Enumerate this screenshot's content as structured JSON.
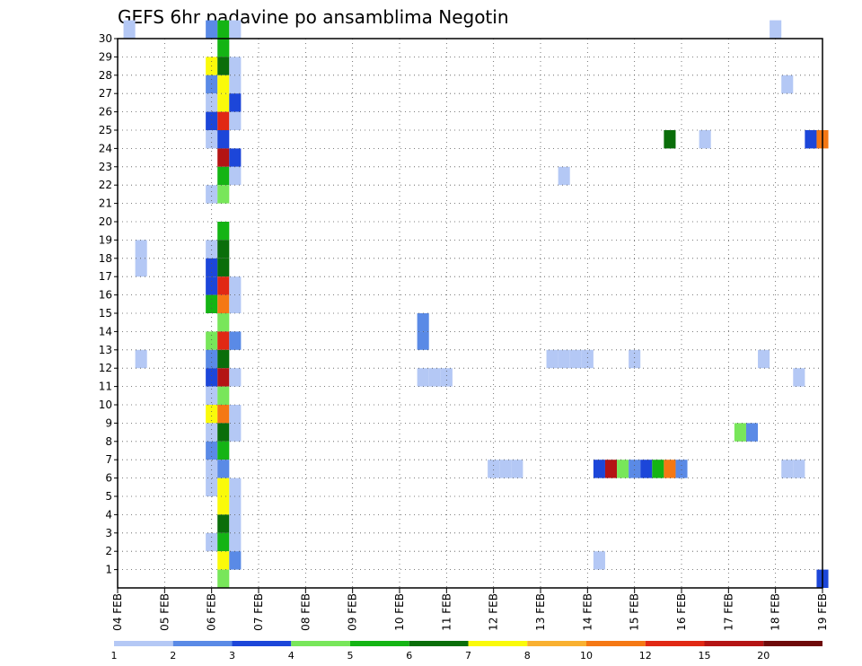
{
  "chart_data": {
    "type": "heatmap",
    "title": "GEFS 6hr padavine po ansamblima Negotin",
    "xlabel": "",
    "ylabel": "",
    "x_tick_labels": [
      "04 FEB",
      "05 FEB",
      "06 FEB",
      "07 FEB",
      "08 FEB",
      "09 FEB",
      "10 FEB",
      "11 FEB",
      "12 FEB",
      "13 FEB",
      "14 FEB",
      "15 FEB",
      "16 FEB",
      "17 FEB",
      "18 FEB",
      "19 FEB"
    ],
    "y_tick_labels": [
      "1",
      "2",
      "3",
      "4",
      "5",
      "6",
      "7",
      "8",
      "9",
      "10",
      "11",
      "12",
      "13",
      "14",
      "15",
      "16",
      "17",
      "18",
      "19",
      "20",
      "21",
      "22",
      "23",
      "24",
      "25",
      "26",
      "27",
      "28",
      "29",
      "30"
    ],
    "ylim": [
      0,
      30
    ],
    "grid": true,
    "legend": {
      "placement": "bottom",
      "labels": [
        "1",
        "2",
        "3",
        "4",
        "5",
        "6",
        "7",
        "8",
        "10",
        "12",
        "15",
        "20"
      ],
      "colors": [
        "#b4c8f5",
        "#5a8ae6",
        "#1c46d9",
        "#78e65a",
        "#14b414",
        "#0a6e0a",
        "#fafa0a",
        "#f9b030",
        "#f57814",
        "#e12814",
        "#b41414",
        "#6e0a0a"
      ]
    },
    "cells": [
      {
        "m": 30,
        "s": 1,
        "v": 1
      },
      {
        "m": 30,
        "s": 8,
        "v": 2
      },
      {
        "m": 30,
        "s": 9,
        "v": 5
      },
      {
        "m": 30,
        "s": 10,
        "v": 1
      },
      {
        "m": 30,
        "s": 56,
        "v": 1
      },
      {
        "m": 29,
        "s": 9,
        "v": 5
      },
      {
        "m": 28,
        "s": 8,
        "v": 7
      },
      {
        "m": 28,
        "s": 9,
        "v": 6
      },
      {
        "m": 28,
        "s": 10,
        "v": 1
      },
      {
        "m": 27,
        "s": 8,
        "v": 2
      },
      {
        "m": 27,
        "s": 9,
        "v": 7
      },
      {
        "m": 27,
        "s": 10,
        "v": 1
      },
      {
        "m": 27,
        "s": 57,
        "v": 1
      },
      {
        "m": 26,
        "s": 8,
        "v": 1
      },
      {
        "m": 26,
        "s": 9,
        "v": 7
      },
      {
        "m": 26,
        "s": 10,
        "v": 3
      },
      {
        "m": 25,
        "s": 8,
        "v": 3
      },
      {
        "m": 25,
        "s": 9,
        "v": 12
      },
      {
        "m": 25,
        "s": 10,
        "v": 1
      },
      {
        "m": 24,
        "s": 8,
        "v": 1
      },
      {
        "m": 24,
        "s": 9,
        "v": 3
      },
      {
        "m": 24,
        "s": 47,
        "v": 6
      },
      {
        "m": 24,
        "s": 50,
        "v": 1
      },
      {
        "m": 24,
        "s": 59,
        "v": 3
      },
      {
        "m": 24,
        "s": 60,
        "v": 10
      },
      {
        "m": 23,
        "s": 9,
        "v": 15
      },
      {
        "m": 23,
        "s": 10,
        "v": 3
      },
      {
        "m": 22,
        "s": 9,
        "v": 5
      },
      {
        "m": 22,
        "s": 10,
        "v": 1
      },
      {
        "m": 22,
        "s": 38,
        "v": 1
      },
      {
        "m": 21,
        "s": 8,
        "v": 1
      },
      {
        "m": 21,
        "s": 9,
        "v": 4
      },
      {
        "m": 19,
        "s": 9,
        "v": 5
      },
      {
        "m": 18,
        "s": 2,
        "v": 1
      },
      {
        "m": 18,
        "s": 8,
        "v": 1
      },
      {
        "m": 18,
        "s": 9,
        "v": 6
      },
      {
        "m": 17,
        "s": 2,
        "v": 1
      },
      {
        "m": 17,
        "s": 8,
        "v": 3
      },
      {
        "m": 17,
        "s": 9,
        "v": 6
      },
      {
        "m": 16,
        "s": 8,
        "v": 3
      },
      {
        "m": 16,
        "s": 9,
        "v": 12
      },
      {
        "m": 16,
        "s": 10,
        "v": 1
      },
      {
        "m": 15,
        "s": 8,
        "v": 5
      },
      {
        "m": 15,
        "s": 9,
        "v": 10
      },
      {
        "m": 15,
        "s": 10,
        "v": 1
      },
      {
        "m": 14,
        "s": 9,
        "v": 4
      },
      {
        "m": 14,
        "s": 26,
        "v": 2
      },
      {
        "m": 13,
        "s": 8,
        "v": 4
      },
      {
        "m": 13,
        "s": 9,
        "v": 12
      },
      {
        "m": 13,
        "s": 10,
        "v": 2
      },
      {
        "m": 13,
        "s": 26,
        "v": 2
      },
      {
        "m": 12,
        "s": 2,
        "v": 1
      },
      {
        "m": 12,
        "s": 8,
        "v": 2
      },
      {
        "m": 12,
        "s": 9,
        "v": 6
      },
      {
        "m": 12,
        "s": 37,
        "v": 1
      },
      {
        "m": 12,
        "s": 38,
        "v": 1
      },
      {
        "m": 12,
        "s": 39,
        "v": 1
      },
      {
        "m": 12,
        "s": 40,
        "v": 1
      },
      {
        "m": 12,
        "s": 44,
        "v": 1
      },
      {
        "m": 12,
        "s": 55,
        "v": 1
      },
      {
        "m": 11,
        "s": 8,
        "v": 3
      },
      {
        "m": 11,
        "s": 9,
        "v": 15
      },
      {
        "m": 11,
        "s": 10,
        "v": 1
      },
      {
        "m": 11,
        "s": 26,
        "v": 1
      },
      {
        "m": 11,
        "s": 27,
        "v": 1
      },
      {
        "m": 11,
        "s": 28,
        "v": 1
      },
      {
        "m": 11,
        "s": 58,
        "v": 1
      },
      {
        "m": 10,
        "s": 8,
        "v": 1
      },
      {
        "m": 10,
        "s": 9,
        "v": 4
      },
      {
        "m": 9,
        "s": 8,
        "v": 7
      },
      {
        "m": 9,
        "s": 9,
        "v": 10
      },
      {
        "m": 9,
        "s": 10,
        "v": 1
      },
      {
        "m": 8,
        "s": 8,
        "v": 1
      },
      {
        "m": 8,
        "s": 9,
        "v": 6
      },
      {
        "m": 8,
        "s": 10,
        "v": 1
      },
      {
        "m": 8,
        "s": 53,
        "v": 4
      },
      {
        "m": 8,
        "s": 54,
        "v": 2
      },
      {
        "m": 7,
        "s": 8,
        "v": 2
      },
      {
        "m": 7,
        "s": 9,
        "v": 5
      },
      {
        "m": 6,
        "s": 8,
        "v": 1
      },
      {
        "m": 6,
        "s": 9,
        "v": 2
      },
      {
        "m": 6,
        "s": 32,
        "v": 1
      },
      {
        "m": 6,
        "s": 33,
        "v": 1
      },
      {
        "m": 6,
        "s": 34,
        "v": 1
      },
      {
        "m": 6,
        "s": 41,
        "v": 3
      },
      {
        "m": 6,
        "s": 42,
        "v": 15
      },
      {
        "m": 6,
        "s": 43,
        "v": 4
      },
      {
        "m": 6,
        "s": 44,
        "v": 2
      },
      {
        "m": 6,
        "s": 45,
        "v": 3
      },
      {
        "m": 6,
        "s": 46,
        "v": 5
      },
      {
        "m": 6,
        "s": 47,
        "v": 10
      },
      {
        "m": 6,
        "s": 48,
        "v": 2
      },
      {
        "m": 6,
        "s": 57,
        "v": 1
      },
      {
        "m": 6,
        "s": 58,
        "v": 1
      },
      {
        "m": 5,
        "s": 8,
        "v": 1
      },
      {
        "m": 5,
        "s": 9,
        "v": 7
      },
      {
        "m": 5,
        "s": 10,
        "v": 1
      },
      {
        "m": 4,
        "s": 9,
        "v": 7
      },
      {
        "m": 4,
        "s": 10,
        "v": 1
      },
      {
        "m": 3,
        "s": 9,
        "v": 6
      },
      {
        "m": 3,
        "s": 10,
        "v": 1
      },
      {
        "m": 2,
        "s": 8,
        "v": 1
      },
      {
        "m": 2,
        "s": 9,
        "v": 5
      },
      {
        "m": 2,
        "s": 10,
        "v": 1
      },
      {
        "m": 1,
        "s": 9,
        "v": 7
      },
      {
        "m": 1,
        "s": 10,
        "v": 2
      },
      {
        "m": 1,
        "s": 41,
        "v": 1
      },
      {
        "m": 0,
        "s": 9,
        "v": 4
      },
      {
        "m": 0,
        "s": 60,
        "v": 3
      }
    ]
  }
}
